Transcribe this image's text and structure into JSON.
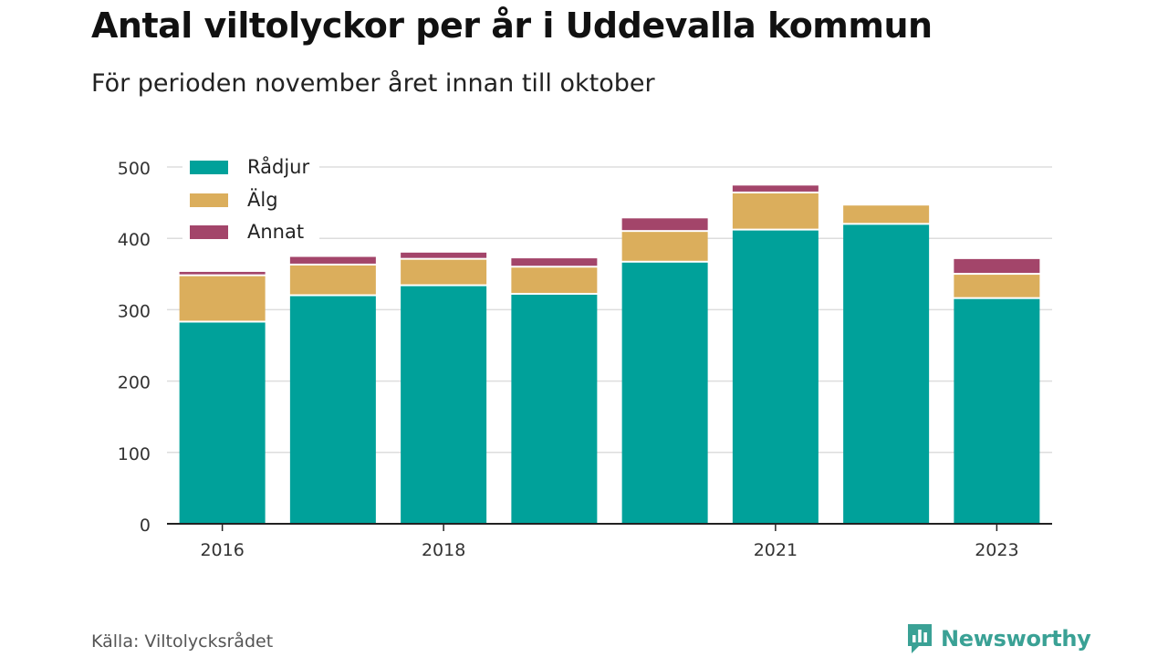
{
  "title": "Antal viltolyckor per år i Uddevalla kommun",
  "subtitle": "För perioden november året innan till oktober",
  "source": "Källa: Viltolycksrådet",
  "brand": "Newsworthy",
  "colors": {
    "radjur": "#00a19a",
    "alg": "#dbae5c",
    "annat": "#a3456a",
    "brand": "#3aa195"
  },
  "chart_data": {
    "type": "bar",
    "stacked": true,
    "title": "Antal viltolyckor per år i Uddevalla kommun",
    "subtitle": "För perioden november året innan till oktober",
    "categories": [
      "2016",
      "2017",
      "2018",
      "2019",
      "2020",
      "2021",
      "2022",
      "2023"
    ],
    "x_tick_labels": [
      "2016",
      "",
      "2018",
      "",
      "",
      "2021",
      "",
      "2023"
    ],
    "y_ticks": [
      "0",
      "100",
      "200",
      "300",
      "400",
      "500"
    ],
    "ylim": [
      0,
      500
    ],
    "grid": true,
    "legend_position": "top-left",
    "series": [
      {
        "name": "Rådjur",
        "color": "#00a19a",
        "values": [
          282,
          319,
          333,
          321,
          366,
          411,
          419,
          315
        ]
      },
      {
        "name": "Älg",
        "color": "#dbae5c",
        "values": [
          65,
          43,
          37,
          38,
          43,
          52,
          27,
          34
        ]
      },
      {
        "name": "Annat",
        "color": "#a3456a",
        "values": [
          6,
          12,
          10,
          13,
          19,
          11,
          0,
          22
        ]
      }
    ]
  }
}
